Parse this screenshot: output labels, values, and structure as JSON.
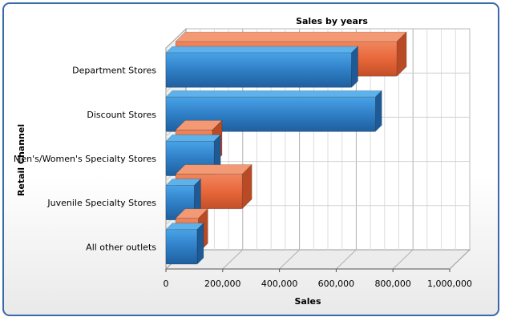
{
  "chart_data": {
    "type": "bar",
    "orientation": "horizontal",
    "three_d": true,
    "title": "Sales by years",
    "xlabel": "Sales",
    "ylabel": "Retail Channel",
    "categories": [
      "Department Stores",
      "Discount Stores",
      "Men's/Women's Specialty Stores",
      "Juvenile Specialty Stores",
      "All other outlets"
    ],
    "series": [
      {
        "color": "#e8673a",
        "values": [
          780000,
          0,
          130000,
          235000,
          80000
        ]
      },
      {
        "color": "#2f7fc6",
        "values": [
          654000,
          738000,
          170000,
          100000,
          110000
        ]
      }
    ],
    "xlim": [
      0,
      1000000
    ],
    "x_ticks": [
      "0",
      "200,000",
      "400,000",
      "600,000",
      "800,000",
      "1,000,000"
    ],
    "grid": true,
    "legend": "none"
  }
}
